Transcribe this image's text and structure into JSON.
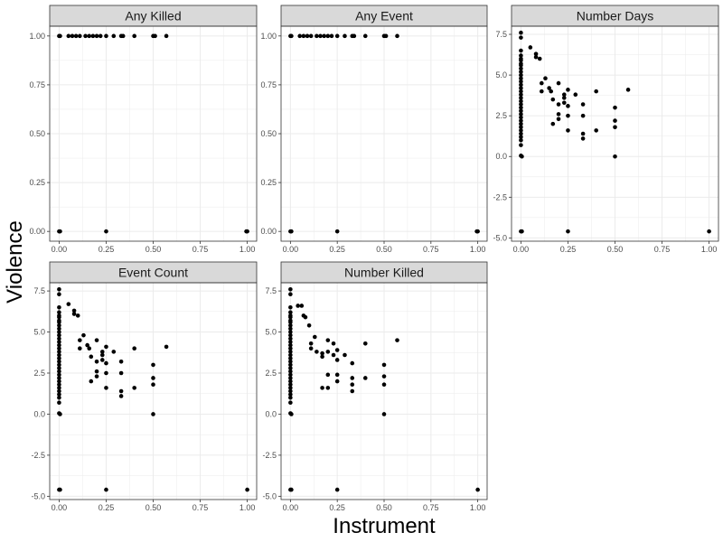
{
  "chart_data": {
    "type": "scatter",
    "layout": "facet_wrap",
    "xlabel": "Instrument",
    "ylabel": "Violence",
    "point_color": "#000000",
    "panel_background": "#ffffff",
    "strip_background": "#d9d9d9",
    "grid_color": "#ebebeb",
    "grid": true,
    "x_ticks": [
      0.0,
      0.25,
      0.5,
      0.75,
      1.0
    ],
    "x_tick_labels": [
      "0.00",
      "0.25",
      "0.50",
      "0.75",
      "1.00"
    ],
    "xlim": [
      -0.05,
      1.05
    ],
    "facets": [
      {
        "title": "Any Killed",
        "ylim": [
          -0.05,
          1.05
        ],
        "y_ticks": [
          0,
          0.25,
          0.5,
          0.75,
          1.0
        ],
        "y_tick_labels": [
          "0.00",
          "0.25",
          "0.50",
          "0.75",
          "1.00"
        ],
        "points": [
          [
            0,
            1
          ],
          [
            0.005,
            1
          ],
          [
            0.05,
            1
          ],
          [
            0.07,
            1
          ],
          [
            0.09,
            1
          ],
          [
            0.11,
            1
          ],
          [
            0.14,
            1
          ],
          [
            0.16,
            1
          ],
          [
            0.18,
            1
          ],
          [
            0.2,
            1
          ],
          [
            0.22,
            1
          ],
          [
            0.25,
            1
          ],
          [
            0.29,
            1
          ],
          [
            0.33,
            1
          ],
          [
            0.34,
            1
          ],
          [
            0.4,
            1
          ],
          [
            0.5,
            1
          ],
          [
            0.51,
            1
          ],
          [
            0.57,
            1
          ],
          [
            0,
            0
          ],
          [
            0.005,
            0
          ],
          [
            0.25,
            0
          ],
          [
            1.0,
            0
          ],
          [
            0.995,
            0
          ]
        ]
      },
      {
        "title": "Any Event",
        "ylim": [
          -0.05,
          1.05
        ],
        "y_ticks": [
          0,
          0.25,
          0.5,
          0.75,
          1.0
        ],
        "y_tick_labels": [
          "0.00",
          "0.25",
          "0.50",
          "0.75",
          "1.00"
        ],
        "points": [
          [
            0,
            1
          ],
          [
            0.005,
            1
          ],
          [
            0.05,
            1
          ],
          [
            0.07,
            1
          ],
          [
            0.09,
            1
          ],
          [
            0.11,
            1
          ],
          [
            0.14,
            1
          ],
          [
            0.16,
            1
          ],
          [
            0.18,
            1
          ],
          [
            0.2,
            1
          ],
          [
            0.22,
            1
          ],
          [
            0.25,
            1
          ],
          [
            0.29,
            1
          ],
          [
            0.33,
            1
          ],
          [
            0.34,
            1
          ],
          [
            0.4,
            1
          ],
          [
            0.5,
            1
          ],
          [
            0.51,
            1
          ],
          [
            0.57,
            1
          ],
          [
            0,
            0
          ],
          [
            0.005,
            0
          ],
          [
            0.25,
            0
          ],
          [
            1.0,
            0
          ],
          [
            0.995,
            0
          ]
        ]
      },
      {
        "title": "Number Days",
        "ylim": [
          -5.2,
          8.0
        ],
        "y_ticks": [
          -5.0,
          -2.5,
          0.0,
          2.5,
          5.0,
          7.5
        ],
        "y_tick_labels": [
          "-5.0",
          "-2.5",
          "0.0",
          "2.5",
          "5.0",
          "7.5"
        ],
        "points": [
          [
            0,
            7.6
          ],
          [
            0,
            7.3
          ],
          [
            0,
            6.5
          ],
          [
            0,
            6.2
          ],
          [
            0,
            6.0
          ],
          [
            0,
            5.9
          ],
          [
            0,
            5.7
          ],
          [
            0,
            5.6
          ],
          [
            0,
            5.4
          ],
          [
            0,
            5.2
          ],
          [
            0,
            5.0
          ],
          [
            0,
            4.8
          ],
          [
            0,
            4.6
          ],
          [
            0,
            4.4
          ],
          [
            0,
            4.2
          ],
          [
            0,
            4.0
          ],
          [
            0,
            3.8
          ],
          [
            0,
            3.6
          ],
          [
            0,
            3.4
          ],
          [
            0,
            3.2
          ],
          [
            0,
            3.0
          ],
          [
            0,
            2.8
          ],
          [
            0,
            2.6
          ],
          [
            0,
            2.4
          ],
          [
            0,
            2.2
          ],
          [
            0,
            2.0
          ],
          [
            0,
            1.8
          ],
          [
            0,
            1.6
          ],
          [
            0,
            1.4
          ],
          [
            0,
            1.2
          ],
          [
            0,
            1.0
          ],
          [
            0,
            0.7
          ],
          [
            0,
            0.05
          ],
          [
            0.005,
            0.0
          ],
          [
            0,
            -4.6
          ],
          [
            0.005,
            -4.6
          ],
          [
            0.05,
            6.7
          ],
          [
            0.08,
            6.3
          ],
          [
            0.08,
            6.1
          ],
          [
            0.1,
            6.0
          ],
          [
            0.11,
            4.5
          ],
          [
            0.11,
            4.0
          ],
          [
            0.13,
            4.8
          ],
          [
            0.15,
            4.2
          ],
          [
            0.16,
            4.0
          ],
          [
            0.17,
            3.5
          ],
          [
            0.17,
            2.0
          ],
          [
            0.2,
            3.2
          ],
          [
            0.2,
            2.3
          ],
          [
            0.2,
            4.5
          ],
          [
            0.2,
            2.6
          ],
          [
            0.23,
            3.8
          ],
          [
            0.23,
            3.6
          ],
          [
            0.23,
            3.3
          ],
          [
            0.25,
            4.1
          ],
          [
            0.25,
            3.1
          ],
          [
            0.25,
            2.5
          ],
          [
            0.25,
            1.6
          ],
          [
            0.29,
            3.8
          ],
          [
            0.33,
            3.2
          ],
          [
            0.33,
            2.5
          ],
          [
            0.33,
            1.4
          ],
          [
            0.33,
            1.1
          ],
          [
            0.4,
            4.0
          ],
          [
            0.4,
            1.6
          ],
          [
            0.5,
            3.0
          ],
          [
            0.5,
            2.2
          ],
          [
            0.5,
            1.8
          ],
          [
            0.5,
            0.0
          ],
          [
            0.57,
            4.1
          ],
          [
            0.25,
            -4.6
          ],
          [
            1.0,
            -4.6
          ]
        ]
      },
      {
        "title": "Event Count",
        "ylim": [
          -5.2,
          8.0
        ],
        "y_ticks": [
          -5.0,
          -2.5,
          0.0,
          2.5,
          5.0,
          7.5
        ],
        "y_tick_labels": [
          "-5.0",
          "-2.5",
          "0.0",
          "2.5",
          "5.0",
          "7.5"
        ],
        "points": [
          [
            0,
            7.6
          ],
          [
            0,
            7.3
          ],
          [
            0,
            6.5
          ],
          [
            0,
            6.2
          ],
          [
            0,
            6.0
          ],
          [
            0,
            5.9
          ],
          [
            0,
            5.7
          ],
          [
            0,
            5.6
          ],
          [
            0,
            5.4
          ],
          [
            0,
            5.2
          ],
          [
            0,
            5.0
          ],
          [
            0,
            4.8
          ],
          [
            0,
            4.6
          ],
          [
            0,
            4.4
          ],
          [
            0,
            4.2
          ],
          [
            0,
            4.0
          ],
          [
            0,
            3.8
          ],
          [
            0,
            3.6
          ],
          [
            0,
            3.4
          ],
          [
            0,
            3.2
          ],
          [
            0,
            3.0
          ],
          [
            0,
            2.8
          ],
          [
            0,
            2.6
          ],
          [
            0,
            2.4
          ],
          [
            0,
            2.2
          ],
          [
            0,
            2.0
          ],
          [
            0,
            1.8
          ],
          [
            0,
            1.6
          ],
          [
            0,
            1.4
          ],
          [
            0,
            1.2
          ],
          [
            0,
            1.0
          ],
          [
            0,
            0.7
          ],
          [
            0,
            0.05
          ],
          [
            0.005,
            0.0
          ],
          [
            0,
            -4.6
          ],
          [
            0.005,
            -4.6
          ],
          [
            0.05,
            6.7
          ],
          [
            0.08,
            6.3
          ],
          [
            0.08,
            6.1
          ],
          [
            0.1,
            6.0
          ],
          [
            0.11,
            4.5
          ],
          [
            0.11,
            4.0
          ],
          [
            0.13,
            4.8
          ],
          [
            0.15,
            4.2
          ],
          [
            0.16,
            4.0
          ],
          [
            0.17,
            3.5
          ],
          [
            0.17,
            2.0
          ],
          [
            0.2,
            3.2
          ],
          [
            0.2,
            2.3
          ],
          [
            0.2,
            4.5
          ],
          [
            0.2,
            2.6
          ],
          [
            0.23,
            3.8
          ],
          [
            0.23,
            3.6
          ],
          [
            0.23,
            3.3
          ],
          [
            0.25,
            4.1
          ],
          [
            0.25,
            3.1
          ],
          [
            0.25,
            2.5
          ],
          [
            0.25,
            1.6
          ],
          [
            0.29,
            3.8
          ],
          [
            0.33,
            3.2
          ],
          [
            0.33,
            2.5
          ],
          [
            0.33,
            1.4
          ],
          [
            0.33,
            1.1
          ],
          [
            0.4,
            4.0
          ],
          [
            0.4,
            1.6
          ],
          [
            0.5,
            3.0
          ],
          [
            0.5,
            2.2
          ],
          [
            0.5,
            1.8
          ],
          [
            0.5,
            0.0
          ],
          [
            0.57,
            4.1
          ],
          [
            0.25,
            -4.6
          ],
          [
            1.0,
            -4.6
          ]
        ]
      },
      {
        "title": "Number Killed",
        "ylim": [
          -5.2,
          8.0
        ],
        "y_ticks": [
          -5.0,
          -2.5,
          0.0,
          2.5,
          5.0,
          7.5
        ],
        "y_tick_labels": [
          "-5.0",
          "-2.5",
          "0.0",
          "2.5",
          "5.0",
          "7.5"
        ],
        "points": [
          [
            0,
            7.6
          ],
          [
            0,
            7.3
          ],
          [
            0,
            6.5
          ],
          [
            0,
            6.2
          ],
          [
            0,
            6.0
          ],
          [
            0,
            5.9
          ],
          [
            0,
            5.7
          ],
          [
            0,
            5.6
          ],
          [
            0,
            5.4
          ],
          [
            0,
            5.2
          ],
          [
            0,
            5.0
          ],
          [
            0,
            4.8
          ],
          [
            0,
            4.6
          ],
          [
            0,
            4.4
          ],
          [
            0,
            4.2
          ],
          [
            0,
            4.0
          ],
          [
            0,
            3.8
          ],
          [
            0,
            3.6
          ],
          [
            0,
            3.4
          ],
          [
            0,
            3.2
          ],
          [
            0,
            3.0
          ],
          [
            0,
            2.8
          ],
          [
            0,
            2.6
          ],
          [
            0,
            2.4
          ],
          [
            0,
            2.2
          ],
          [
            0,
            2.0
          ],
          [
            0,
            1.8
          ],
          [
            0,
            1.6
          ],
          [
            0,
            1.4
          ],
          [
            0,
            1.2
          ],
          [
            0,
            1.0
          ],
          [
            0,
            0.7
          ],
          [
            0,
            0.05
          ],
          [
            0.005,
            0.0
          ],
          [
            0,
            -4.6
          ],
          [
            0.005,
            -4.6
          ],
          [
            0.04,
            6.6
          ],
          [
            0.06,
            6.6
          ],
          [
            0.07,
            6.0
          ],
          [
            0.08,
            5.9
          ],
          [
            0.1,
            5.4
          ],
          [
            0.11,
            4.3
          ],
          [
            0.11,
            4.0
          ],
          [
            0.13,
            4.7
          ],
          [
            0.14,
            3.8
          ],
          [
            0.17,
            3.7
          ],
          [
            0.17,
            3.5
          ],
          [
            0.17,
            1.6
          ],
          [
            0.2,
            3.8
          ],
          [
            0.2,
            1.6
          ],
          [
            0.2,
            4.5
          ],
          [
            0.2,
            2.4
          ],
          [
            0.23,
            4.3
          ],
          [
            0.23,
            3.6
          ],
          [
            0.25,
            3.9
          ],
          [
            0.25,
            3.3
          ],
          [
            0.25,
            2.4
          ],
          [
            0.25,
            2.0
          ],
          [
            0.29,
            3.6
          ],
          [
            0.33,
            3.1
          ],
          [
            0.33,
            2.2
          ],
          [
            0.33,
            1.8
          ],
          [
            0.33,
            1.4
          ],
          [
            0.4,
            4.3
          ],
          [
            0.4,
            2.2
          ],
          [
            0.5,
            3.0
          ],
          [
            0.5,
            2.3
          ],
          [
            0.5,
            1.8
          ],
          [
            0.5,
            0.0
          ],
          [
            0.57,
            4.5
          ],
          [
            0.25,
            -4.6
          ],
          [
            1.0,
            -4.6
          ]
        ]
      }
    ]
  }
}
